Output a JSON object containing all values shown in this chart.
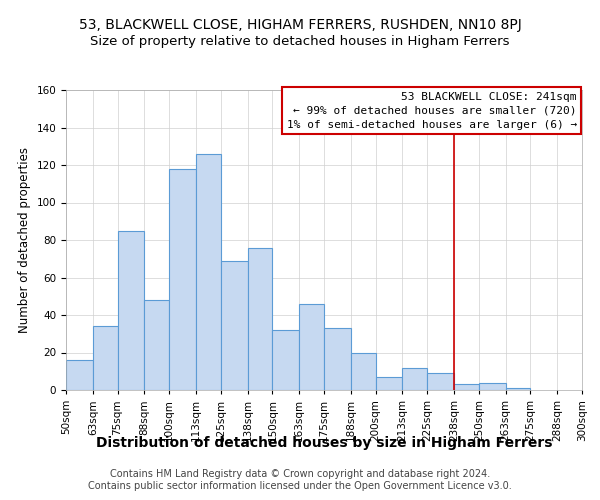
{
  "title": "53, BLACKWELL CLOSE, HIGHAM FERRERS, RUSHDEN, NN10 8PJ",
  "subtitle": "Size of property relative to detached houses in Higham Ferrers",
  "xlabel": "Distribution of detached houses by size in Higham Ferrers",
  "ylabel": "Number of detached properties",
  "bar_heights": [
    16,
    34,
    85,
    48,
    118,
    126,
    69,
    76,
    32,
    46,
    33,
    20,
    7,
    12,
    9,
    3,
    4,
    1
  ],
  "bar_color": "#c6d9f1",
  "bar_edge_color": "#5b9bd5",
  "vline_x": 238,
  "vline_color": "#cc0000",
  "ylim": [
    0,
    160
  ],
  "yticks": [
    0,
    20,
    40,
    60,
    80,
    100,
    120,
    140,
    160
  ],
  "legend_title": "53 BLACKWELL CLOSE: 241sqm",
  "legend_line1": "← 99% of detached houses are smaller (720)",
  "legend_line2": "1% of semi-detached houses are larger (6) →",
  "legend_box_color": "#cc0000",
  "footnote1": "Contains HM Land Registry data © Crown copyright and database right 2024.",
  "footnote2": "Contains public sector information licensed under the Open Government Licence v3.0.",
  "title_fontsize": 10,
  "subtitle_fontsize": 9.5,
  "xlabel_fontsize": 10,
  "ylabel_fontsize": 8.5,
  "tick_fontsize": 7.5,
  "legend_fontsize": 8,
  "footnote_fontsize": 7,
  "bin_edges": [
    50,
    63,
    75,
    88,
    100,
    113,
    125,
    138,
    150,
    163,
    175,
    188,
    200,
    213,
    225,
    238,
    250,
    263,
    275,
    288,
    300
  ],
  "bin_labels": [
    "50sqm",
    "63sqm",
    "75sqm",
    "88sqm",
    "100sqm",
    "113sqm",
    "125sqm",
    "138sqm",
    "150sqm",
    "163sqm",
    "175sqm",
    "188sqm",
    "200sqm",
    "213sqm",
    "225sqm",
    "238sqm",
    "250sqm",
    "263sqm",
    "275sqm",
    "288sqm",
    "300sqm"
  ]
}
